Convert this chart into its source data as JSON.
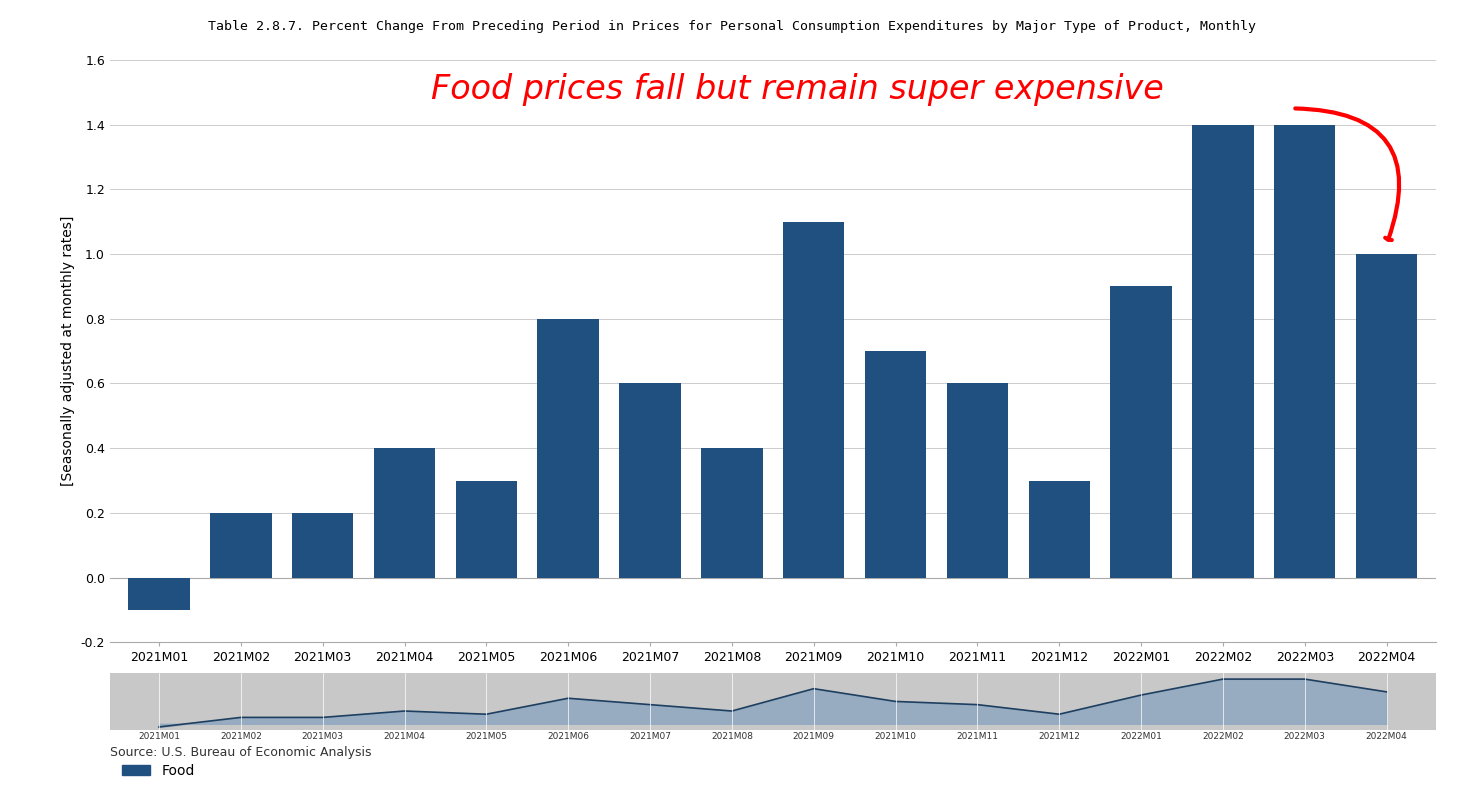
{
  "title": "Table 2.8.7. Percent Change From Preceding Period in Prices for Personal Consumption Expenditures by Major Type of Product, Monthly",
  "ylabel": "[Seasonally adjusted at monthly rates]",
  "source": "Source: U.S. Bureau of Economic Analysis",
  "legend_label": "Food",
  "annotation_text": "Food prices fall but remain super expensive",
  "categories": [
    "2021M01",
    "2021M02",
    "2021M03",
    "2021M04",
    "2021M05",
    "2021M06",
    "2021M07",
    "2021M08",
    "2021M09",
    "2021M10",
    "2021M11",
    "2021M12",
    "2022M01",
    "2022M02",
    "2022M03",
    "2022M04"
  ],
  "values": [
    -0.1,
    0.2,
    0.2,
    0.4,
    0.3,
    0.8,
    0.6,
    0.4,
    1.1,
    0.7,
    0.6,
    0.3,
    0.9,
    1.4,
    1.4,
    1.0
  ],
  "bar_color": "#1F5080",
  "ylim": [
    -0.2,
    1.6
  ],
  "yticks": [
    -0.2,
    0.0,
    0.2,
    0.4,
    0.6,
    0.8,
    1.0,
    1.2,
    1.4,
    1.6
  ],
  "annotation_color": "red",
  "annotation_fontsize": 24,
  "title_fontsize": 9.5,
  "ylabel_fontsize": 10,
  "bg_strip_color": "#A8D4E8",
  "grid_color": "#CCCCCC",
  "mini_bg_color": "#C8C8C8",
  "mini_fill_color": "#8FA8C0",
  "mini_line_color": "#1F3F60",
  "mini_strip_color": "#A8D4E8"
}
